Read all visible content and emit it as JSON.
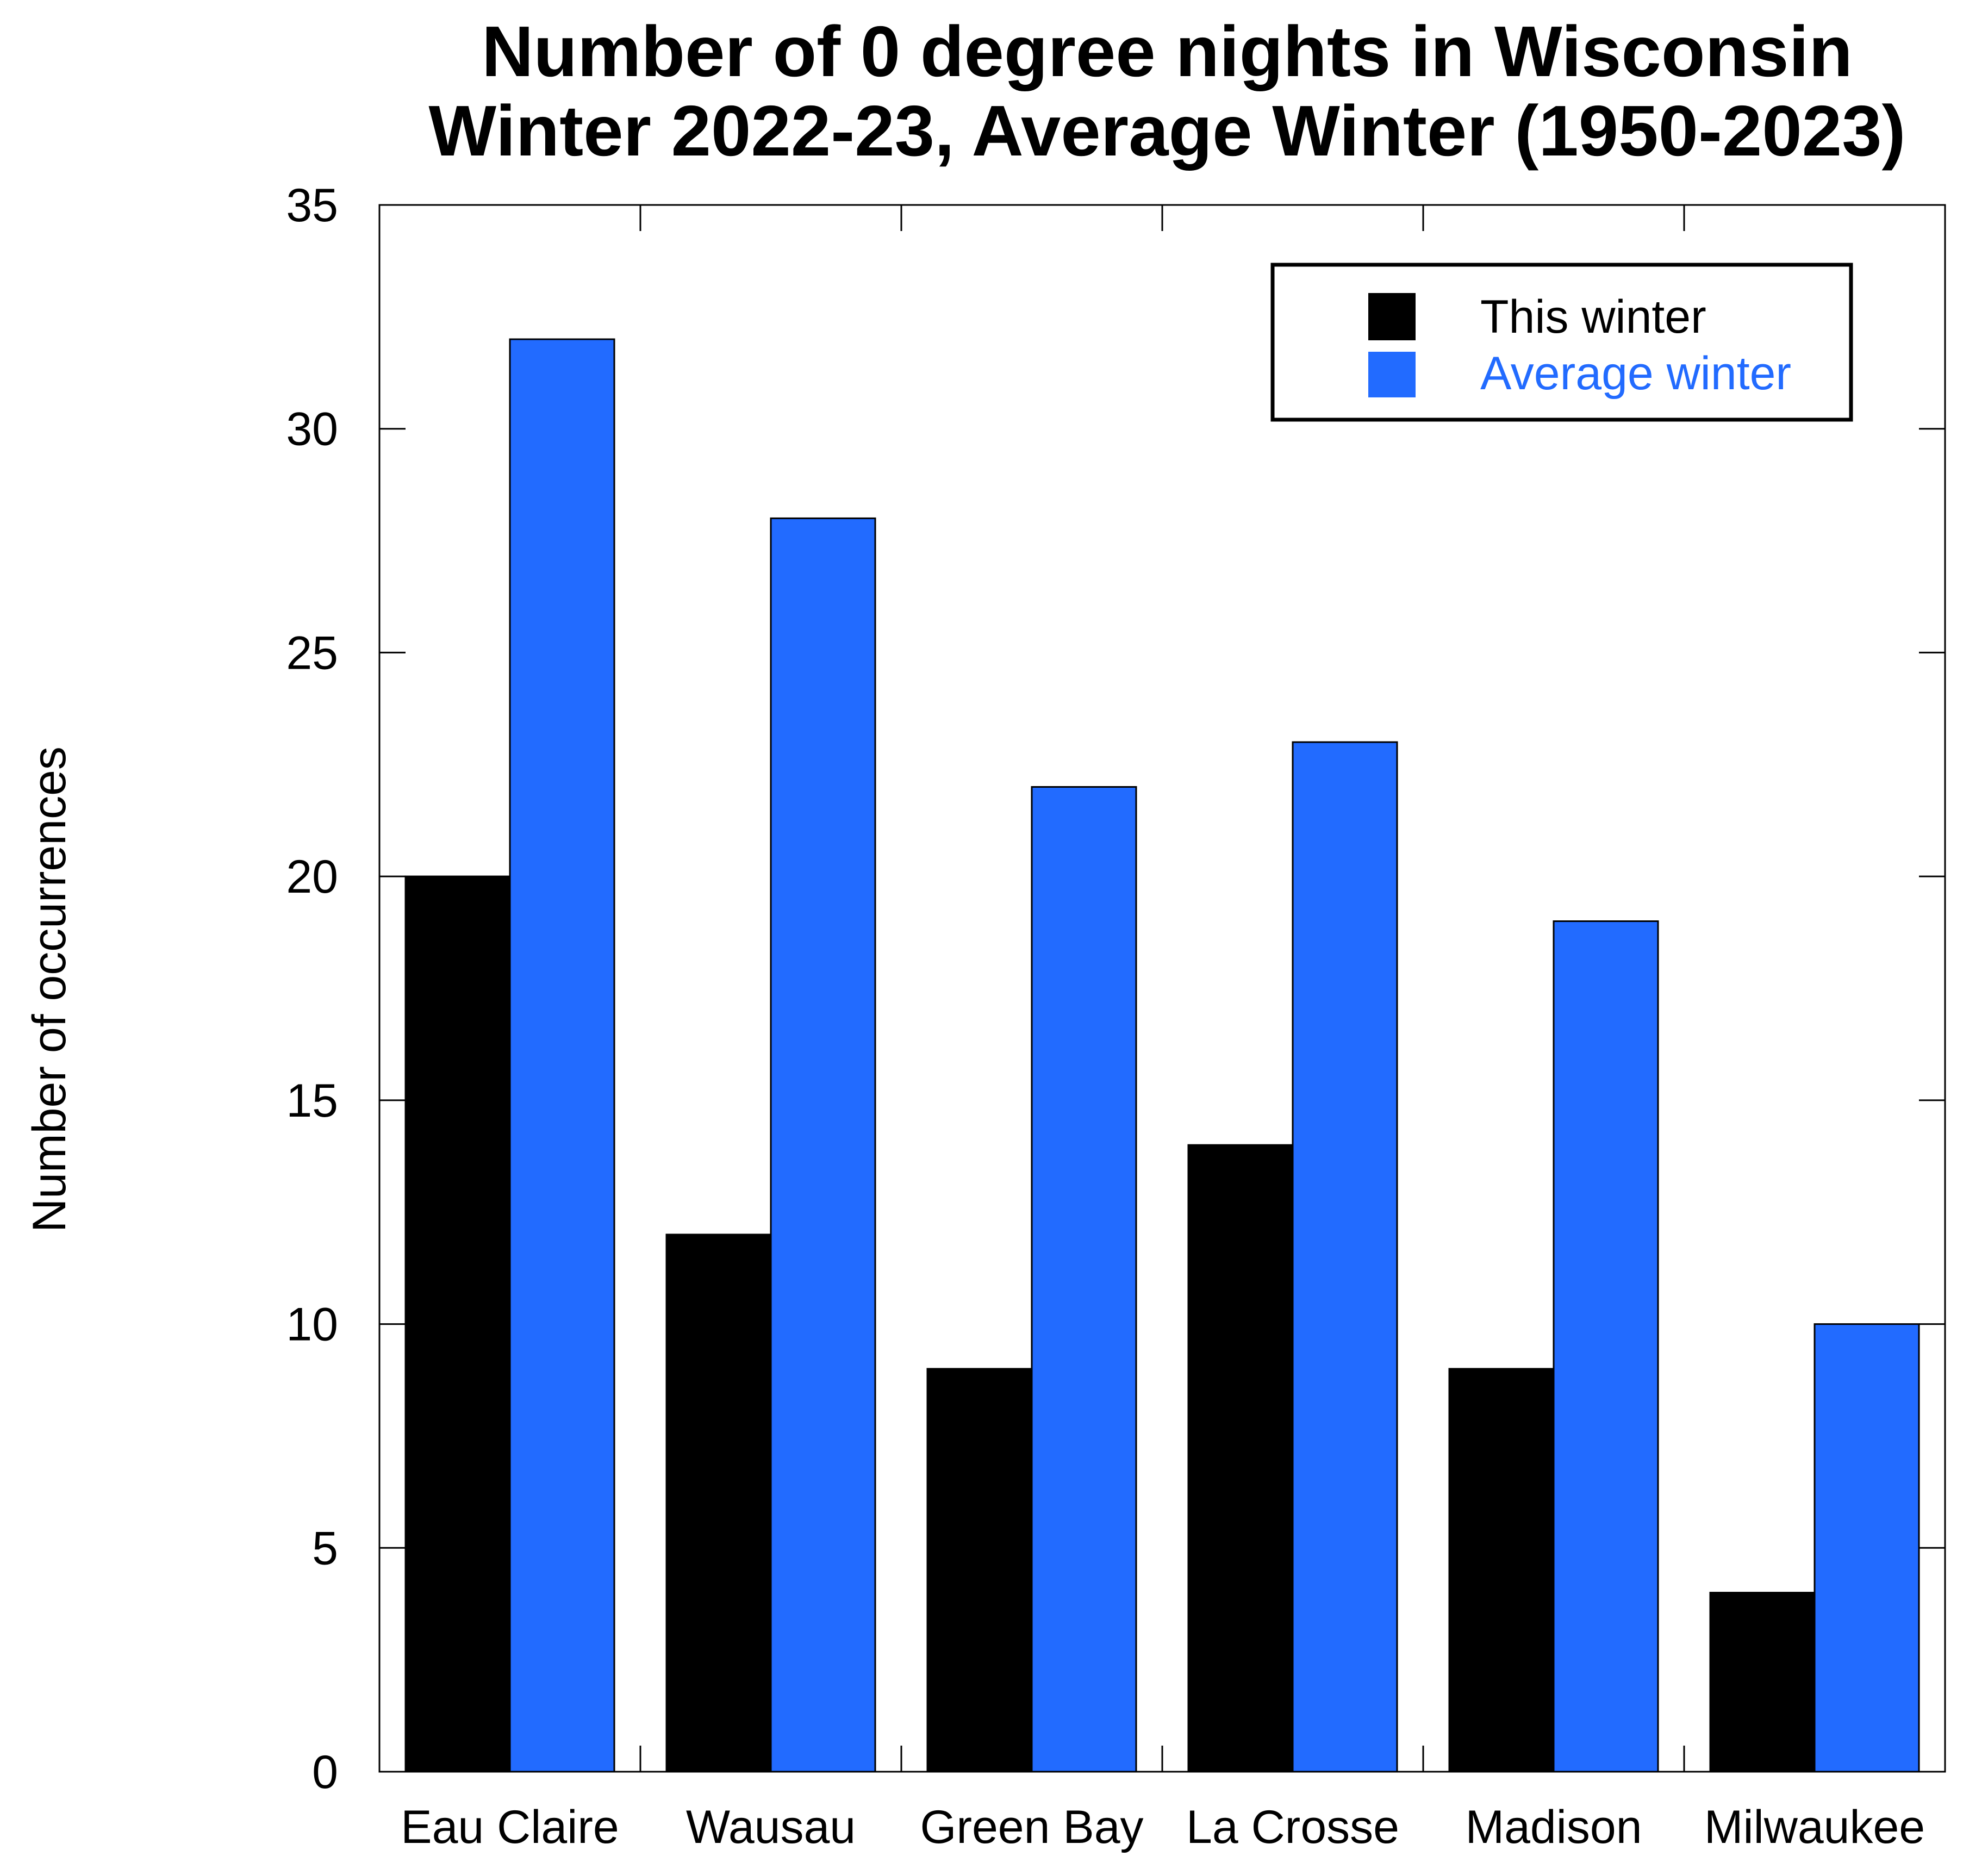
{
  "chart_data": {
    "type": "bar",
    "title_lines": [
      "Number of 0 degree nights in Wisconsin",
      "Winter 2022-23, Average Winter (1950-2023)"
    ],
    "xlabel": "",
    "ylabel": "Number of occurrences",
    "ylim": [
      0,
      35
    ],
    "yticks": [
      0,
      5,
      10,
      15,
      20,
      25,
      30,
      35
    ],
    "grid": false,
    "legend_position": "top-right",
    "categories": [
      "Eau Claire",
      "Wausau",
      "Green Bay",
      "La Crosse",
      "Madison",
      "Milwaukee"
    ],
    "series": [
      {
        "name": "This winter",
        "color": "#000000",
        "label_color": "#000000",
        "values": [
          20,
          12,
          9,
          14,
          9,
          4
        ]
      },
      {
        "name": "Average winter",
        "color": "#226bff",
        "label_color": "#226bff",
        "values": [
          32,
          28,
          22,
          23,
          19,
          10
        ]
      }
    ]
  }
}
